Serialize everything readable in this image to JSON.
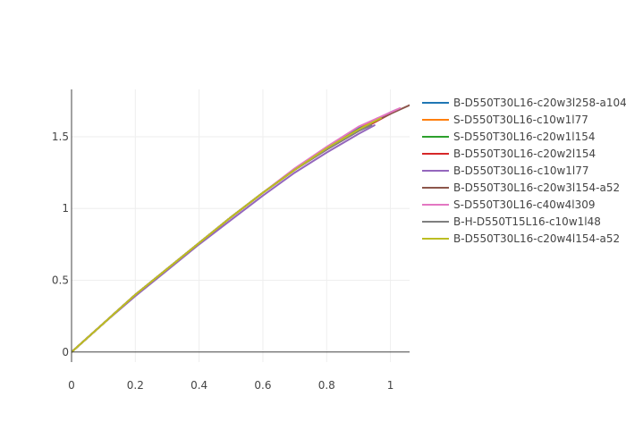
{
  "chart_data": {
    "type": "line",
    "title": "",
    "xlabel": "",
    "ylabel": "",
    "xlim": [
      0,
      1.06
    ],
    "ylim": [
      -0.07,
      1.83
    ],
    "grid": true,
    "legend_position": "right",
    "x_ticks": [
      {
        "value": 0,
        "label": "0"
      },
      {
        "value": 0.2,
        "label": "0.2"
      },
      {
        "value": 0.4,
        "label": "0.4"
      },
      {
        "value": 0.6,
        "label": "0.6"
      },
      {
        "value": 0.8,
        "label": "0.8"
      },
      {
        "value": 1,
        "label": "1"
      }
    ],
    "y_ticks": [
      {
        "value": 0,
        "label": "0"
      },
      {
        "value": 0.5,
        "label": "0.5"
      },
      {
        "value": 1,
        "label": "1"
      },
      {
        "value": 1.5,
        "label": "1.5"
      }
    ],
    "series": [
      {
        "name": "B-D550T30L16-c20w3l258-a104",
        "color": "#1f77b4",
        "x": [
          0,
          0.1,
          0.2,
          0.3,
          0.4,
          0.5,
          0.6,
          0.7,
          0.8,
          0.9,
          1.0,
          1.02
        ],
        "y": [
          0,
          0.2,
          0.4,
          0.58,
          0.76,
          0.94,
          1.11,
          1.27,
          1.42,
          1.56,
          1.67,
          1.69
        ]
      },
      {
        "name": "S-D550T30L16-c10w1l77",
        "color": "#ff7f0e",
        "x": [
          0,
          0.1,
          0.2,
          0.3,
          0.4,
          0.5,
          0.6,
          0.7,
          0.8,
          0.9,
          0.96
        ],
        "y": [
          0,
          0.2,
          0.4,
          0.58,
          0.76,
          0.94,
          1.11,
          1.27,
          1.42,
          1.55,
          1.63
        ]
      },
      {
        "name": "S-D550T30L16-c20w1l154",
        "color": "#2ca02c",
        "x": [
          0,
          0.1,
          0.2,
          0.3,
          0.4,
          0.5,
          0.6,
          0.7,
          0.8,
          0.9,
          0.98
        ],
        "y": [
          0,
          0.2,
          0.4,
          0.58,
          0.76,
          0.94,
          1.11,
          1.27,
          1.42,
          1.55,
          1.64
        ]
      },
      {
        "name": "B-D550T30L16-c20w2l154",
        "color": "#d62728",
        "x": [
          0,
          0.1,
          0.2,
          0.3,
          0.4,
          0.5,
          0.6,
          0.7,
          0.8,
          0.9,
          1.0
        ],
        "y": [
          0,
          0.2,
          0.4,
          0.58,
          0.76,
          0.94,
          1.11,
          1.27,
          1.41,
          1.54,
          1.66
        ]
      },
      {
        "name": "B-D550T30L16-c10w1l77",
        "color": "#9467bd",
        "x": [
          0,
          0.1,
          0.2,
          0.3,
          0.4,
          0.5,
          0.6,
          0.7,
          0.8,
          0.9,
          0.95
        ],
        "y": [
          0,
          0.2,
          0.39,
          0.57,
          0.75,
          0.92,
          1.09,
          1.25,
          1.39,
          1.52,
          1.58
        ]
      },
      {
        "name": "B-D550T30L16-c20w3l154-a52",
        "color": "#8c564b",
        "x": [
          0,
          0.1,
          0.2,
          0.3,
          0.4,
          0.5,
          0.6,
          0.7,
          0.8,
          0.9,
          1.0,
          1.06
        ],
        "y": [
          0,
          0.2,
          0.4,
          0.58,
          0.76,
          0.94,
          1.11,
          1.27,
          1.42,
          1.55,
          1.66,
          1.72
        ]
      },
      {
        "name": "S-D550T30L16-c40w4l309",
        "color": "#e377c2",
        "x": [
          0,
          0.1,
          0.2,
          0.3,
          0.4,
          0.5,
          0.6,
          0.7,
          0.8,
          0.9,
          1.0,
          1.03
        ],
        "y": [
          0,
          0.2,
          0.4,
          0.58,
          0.76,
          0.94,
          1.11,
          1.28,
          1.43,
          1.57,
          1.67,
          1.7
        ]
      },
      {
        "name": "B-H-D550T15L16-c10w1l48",
        "color": "#7f7f7f",
        "x": [
          0,
          0.1,
          0.2,
          0.3,
          0.4,
          0.5,
          0.6,
          0.7,
          0.8,
          0.9,
          0.94
        ],
        "y": [
          0,
          0.2,
          0.4,
          0.58,
          0.76,
          0.94,
          1.11,
          1.27,
          1.41,
          1.54,
          1.58
        ]
      },
      {
        "name": "B-D550T30L16-c20w4l154-a52",
        "color": "#bcbd22",
        "x": [
          0,
          0.1,
          0.2,
          0.3,
          0.4,
          0.5,
          0.6,
          0.7,
          0.8,
          0.9,
          0.97
        ],
        "y": [
          0,
          0.2,
          0.4,
          0.58,
          0.76,
          0.94,
          1.11,
          1.27,
          1.42,
          1.55,
          1.63
        ]
      }
    ]
  }
}
